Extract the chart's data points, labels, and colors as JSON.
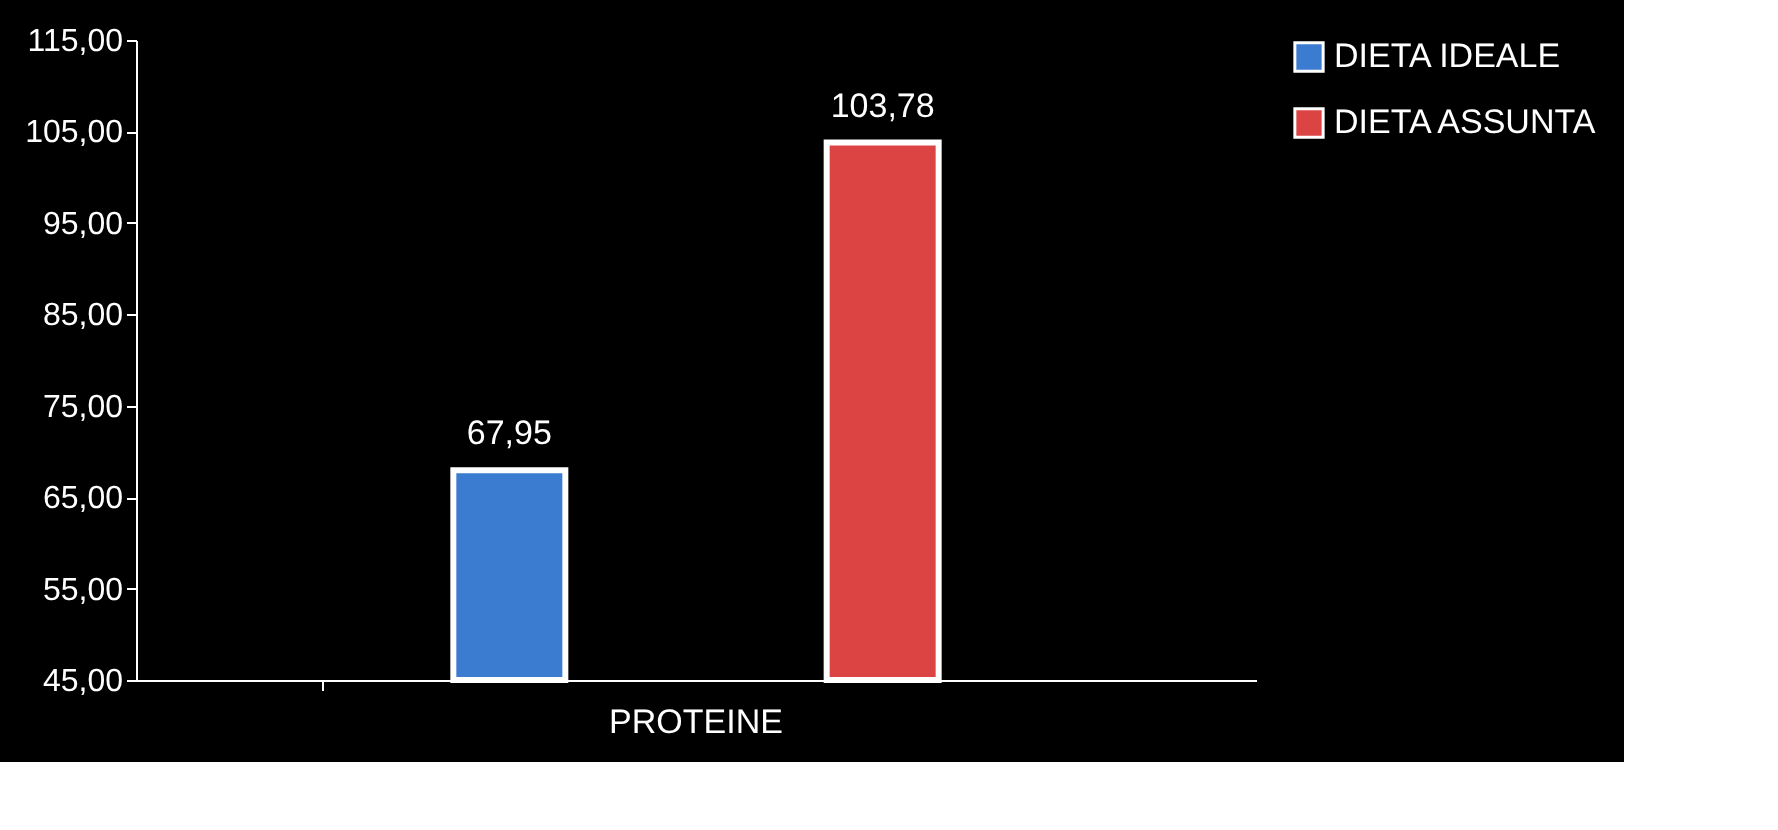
{
  "chart_data": {
    "type": "bar",
    "categories": [
      "PROTEINE"
    ],
    "series": [
      {
        "name": "DIETA IDEALE",
        "color": "#3b7bd0",
        "values": [
          67.95
        ],
        "value_labels": [
          "67,95"
        ]
      },
      {
        "name": "DIETA ASSUNTA",
        "color": "#dc4444",
        "values": [
          103.78
        ],
        "value_labels": [
          "103,78"
        ]
      }
    ],
    "ylim": [
      45,
      115
    ],
    "yticks": [
      {
        "value": 45,
        "label": "45,00"
      },
      {
        "value": 55,
        "label": "55,00"
      },
      {
        "value": 65,
        "label": "65,00"
      },
      {
        "value": 75,
        "label": "75,00"
      },
      {
        "value": 85,
        "label": "85,00"
      },
      {
        "value": 95,
        "label": "95,00"
      },
      {
        "value": 105,
        "label": "105,00"
      },
      {
        "value": 115,
        "label": "115,00"
      }
    ],
    "grid": false,
    "legend": "right"
  }
}
